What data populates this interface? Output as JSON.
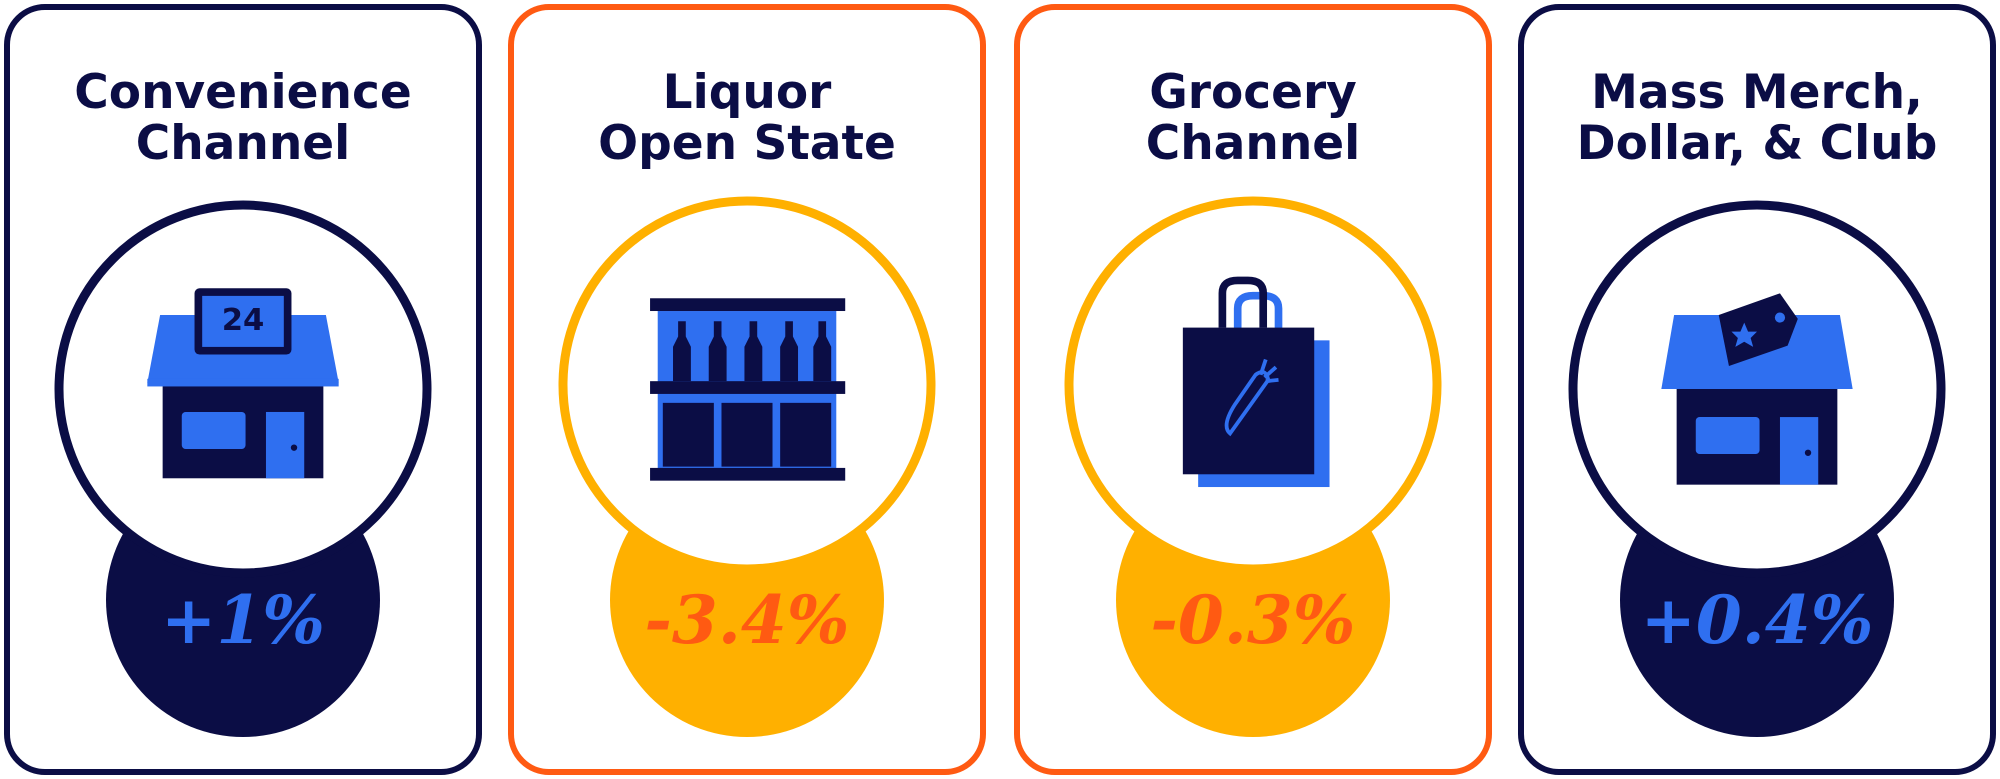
{
  "cards": [
    {
      "title": [
        "Convenience",
        "Channel"
      ],
      "value": "+1%"
    },
    {
      "title": [
        "Liquor",
        "Open State"
      ],
      "value": "-3.4%"
    },
    {
      "title": [
        "Grocery",
        "Channel"
      ],
      "value": "-0.3%"
    },
    {
      "title": [
        "Mass Merch,",
        "Dollar, & Club"
      ],
      "value": "+0.4%"
    }
  ]
}
